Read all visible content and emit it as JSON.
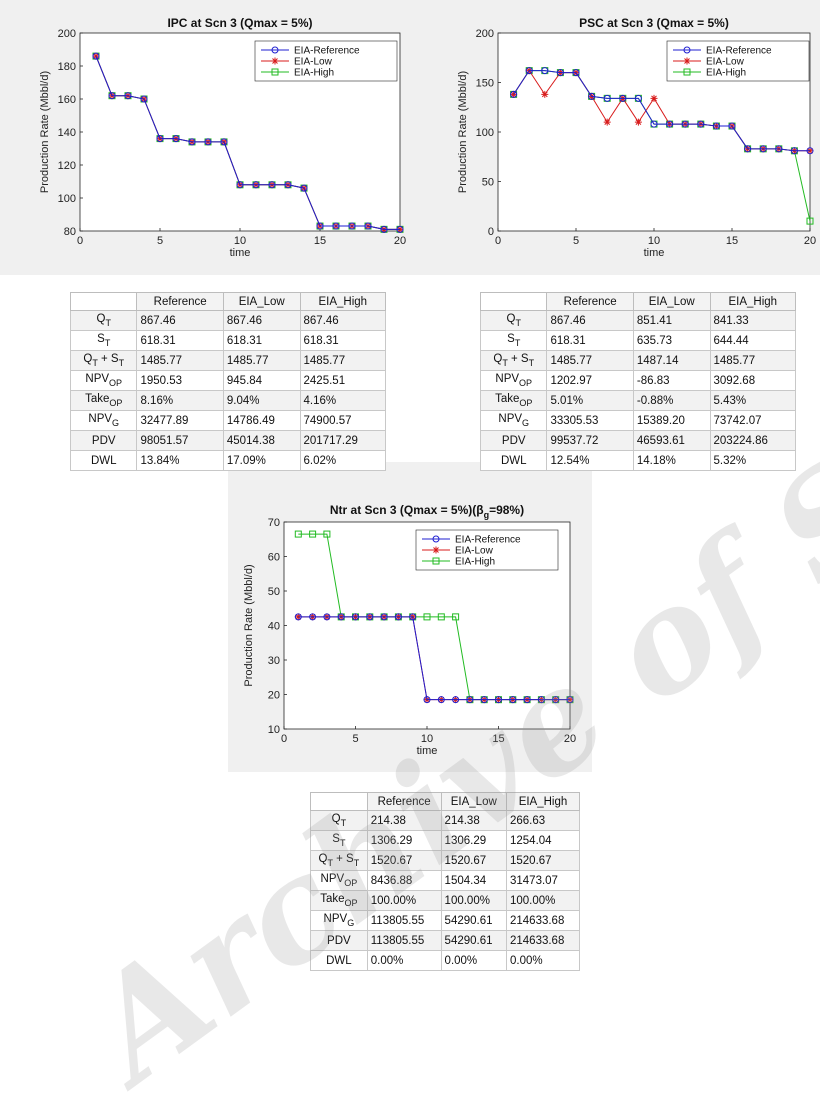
{
  "watermark": "Archive of SID",
  "chart_data": [
    {
      "type": "line",
      "title": "IPC at Scn 3 (Qmax  = 5%)",
      "xlabel": "time",
      "ylabel": "Production Rate (Mbbl/d)",
      "xlim": [
        0,
        20
      ],
      "ylim": [
        80,
        200
      ],
      "xticks": [
        0,
        5,
        10,
        15,
        20
      ],
      "yticks": [
        80,
        100,
        120,
        140,
        160,
        180,
        200
      ],
      "legend_position": "top-right",
      "x": [
        1,
        2,
        3,
        4,
        5,
        6,
        7,
        8,
        9,
        10,
        11,
        12,
        13,
        14,
        15,
        16,
        17,
        18,
        19,
        20
      ],
      "series": [
        {
          "name": "EIA-Reference",
          "color": "#1f1fd0",
          "marker": "circle",
          "values": [
            186,
            162,
            162,
            160,
            136,
            136,
            134,
            134,
            134,
            108,
            108,
            108,
            108,
            106,
            83,
            83,
            83,
            83,
            81,
            81
          ]
        },
        {
          "name": "EIA-Low",
          "color": "#d81b1b",
          "marker": "star",
          "values": [
            186,
            162,
            162,
            160,
            136,
            136,
            134,
            134,
            134,
            108,
            108,
            108,
            108,
            106,
            83,
            83,
            83,
            83,
            81,
            81
          ]
        },
        {
          "name": "EIA-High",
          "color": "#22bb22",
          "marker": "square",
          "values": [
            186,
            162,
            162,
            160,
            136,
            136,
            134,
            134,
            134,
            108,
            108,
            108,
            108,
            106,
            83,
            83,
            83,
            83,
            81,
            81
          ]
        }
      ]
    },
    {
      "type": "line",
      "title": "PSC at Scn 3 (Qmax  = 5%)",
      "xlabel": "time",
      "ylabel": "Production Rate (Mbbl/d)",
      "xlim": [
        0,
        20
      ],
      "ylim": [
        0,
        200
      ],
      "xticks": [
        0,
        5,
        10,
        15,
        20
      ],
      "yticks": [
        0,
        50,
        100,
        150,
        200
      ],
      "legend_position": "top-right",
      "x": [
        1,
        2,
        3,
        4,
        5,
        6,
        7,
        8,
        9,
        10,
        11,
        12,
        13,
        14,
        15,
        16,
        17,
        18,
        19,
        20
      ],
      "series": [
        {
          "name": "EIA-Reference",
          "color": "#1f1fd0",
          "marker": "circle",
          "values": [
            138,
            162,
            162,
            160,
            160,
            136,
            134,
            134,
            134,
            108,
            108,
            108,
            108,
            106,
            106,
            83,
            83,
            83,
            81,
            81
          ]
        },
        {
          "name": "EIA-Low",
          "color": "#d81b1b",
          "marker": "star",
          "values": [
            138,
            162,
            138,
            160,
            160,
            136,
            110,
            134,
            110,
            134,
            108,
            108,
            108,
            106,
            106,
            83,
            83,
            83,
            81,
            81
          ]
        },
        {
          "name": "EIA-High",
          "color": "#22bb22",
          "marker": "square",
          "values": [
            138,
            162,
            162,
            160,
            160,
            136,
            134,
            134,
            134,
            108,
            108,
            108,
            108,
            106,
            106,
            83,
            83,
            83,
            81,
            10
          ]
        }
      ]
    },
    {
      "type": "line",
      "title": "Ntr at Scn 3 (Qmax  = 5%)(β",
      "title_sub": "g",
      "title_tail": "=98%)",
      "xlabel": "time",
      "ylabel": "Production Rate (Mbbl/d)",
      "xlim": [
        0,
        20
      ],
      "ylim": [
        10,
        70
      ],
      "xticks": [
        0,
        5,
        10,
        15,
        20
      ],
      "yticks": [
        10,
        20,
        30,
        40,
        50,
        60,
        70
      ],
      "legend_position": "top-right",
      "x": [
        1,
        2,
        3,
        4,
        5,
        6,
        7,
        8,
        9,
        10,
        11,
        12,
        13,
        14,
        15,
        16,
        17,
        18,
        19,
        20
      ],
      "series": [
        {
          "name": "EIA-Reference",
          "color": "#1f1fd0",
          "marker": "circle",
          "values": [
            42.5,
            42.5,
            42.5,
            42.5,
            42.5,
            42.5,
            42.5,
            42.5,
            42.5,
            18.5,
            18.5,
            18.5,
            18.5,
            18.5,
            18.5,
            18.5,
            18.5,
            18.5,
            18.5,
            18.5
          ]
        },
        {
          "name": "EIA-Low",
          "color": "#d81b1b",
          "marker": "star",
          "values": [
            42.5,
            42.5,
            42.5,
            42.5,
            42.5,
            42.5,
            42.5,
            42.5,
            42.5,
            18.5,
            18.5,
            18.5,
            18.5,
            18.5,
            18.5,
            18.5,
            18.5,
            18.5,
            18.5,
            18.5
          ]
        },
        {
          "name": "EIA-High",
          "color": "#22bb22",
          "marker": "square",
          "values": [
            66.5,
            66.5,
            66.5,
            42.5,
            42.5,
            42.5,
            42.5,
            42.5,
            42.5,
            42.5,
            42.5,
            42.5,
            18.5,
            18.5,
            18.5,
            18.5,
            18.5,
            18.5,
            18.5,
            18.5
          ]
        }
      ]
    }
  ],
  "tables": [
    {
      "columns": [
        "",
        "Reference",
        "EIA_Low",
        "EIA_High"
      ],
      "rows": [
        {
          "label": "Q",
          "sub": "T",
          "sup2": "",
          "values": [
            "867.46",
            "867.46",
            "867.46"
          ]
        },
        {
          "label": "S",
          "sub": "T",
          "sup2": "",
          "values": [
            "618.31",
            "618.31",
            "618.31"
          ]
        },
        {
          "label": "Q",
          "sub": "T",
          "sup2": " + S",
          "sub2": "T",
          "values": [
            "1485.77",
            "1485.77",
            "1485.77"
          ]
        },
        {
          "label": "NPV",
          "sub": "OP",
          "sup2": "",
          "values": [
            "1950.53",
            "945.84",
            "2425.51"
          ]
        },
        {
          "label": "Take",
          "sub": "OP",
          "sup2": "",
          "values": [
            "8.16%",
            "9.04%",
            "4.16%"
          ]
        },
        {
          "label": "NPV",
          "sub": "G",
          "sup2": "",
          "values": [
            "32477.89",
            "14786.49",
            "74900.57"
          ]
        },
        {
          "label": "PDV",
          "sub": "",
          "sup2": "",
          "values": [
            "98051.57",
            "45014.38",
            "201717.29"
          ]
        },
        {
          "label": "DWL",
          "sub": "",
          "sup2": "",
          "values": [
            "13.84%",
            "17.09%",
            "6.02%"
          ]
        }
      ]
    },
    {
      "columns": [
        "",
        "Reference",
        "EIA_Low",
        "EIA_High"
      ],
      "rows": [
        {
          "label": "Q",
          "sub": "T",
          "sup2": "",
          "values": [
            "867.46",
            "851.41",
            "841.33"
          ]
        },
        {
          "label": "S",
          "sub": "T",
          "sup2": "",
          "values": [
            "618.31",
            "635.73",
            "644.44"
          ]
        },
        {
          "label": "Q",
          "sub": "T",
          "sup2": " + S",
          "sub2": "T",
          "values": [
            "1485.77",
            "1487.14",
            "1485.77"
          ]
        },
        {
          "label": "NPV",
          "sub": "OP",
          "sup2": "",
          "values": [
            "1202.97",
            "-86.83",
            "3092.68"
          ]
        },
        {
          "label": "Take",
          "sub": "OP",
          "sup2": "",
          "values": [
            "5.01%",
            "-0.88%",
            "5.43%"
          ]
        },
        {
          "label": "NPV",
          "sub": "G",
          "sup2": "",
          "values": [
            "33305.53",
            "15389.20",
            "73742.07"
          ]
        },
        {
          "label": "PDV",
          "sub": "",
          "sup2": "",
          "values": [
            "99537.72",
            "46593.61",
            "203224.86"
          ]
        },
        {
          "label": "DWL",
          "sub": "",
          "sup2": "",
          "values": [
            "12.54%",
            "14.18%",
            "5.32%"
          ]
        }
      ]
    },
    {
      "columns": [
        "",
        "Reference",
        "EIA_Low",
        "EIA_High"
      ],
      "rows": [
        {
          "label": "Q",
          "sub": "T",
          "sup2": "",
          "values": [
            "214.38",
            "214.38",
            "266.63"
          ]
        },
        {
          "label": "S",
          "sub": "T",
          "sup2": "",
          "values": [
            "1306.29",
            "1306.29",
            "1254.04"
          ]
        },
        {
          "label": "Q",
          "sub": "T",
          "sup2": " + S",
          "sub2": "T",
          "values": [
            "1520.67",
            "1520.67",
            "1520.67"
          ]
        },
        {
          "label": "NPV",
          "sub": "OP",
          "sup2": "",
          "values": [
            "8436.88",
            "1504.34",
            "31473.07"
          ]
        },
        {
          "label": "Take",
          "sub": "OP",
          "sup2": "",
          "values": [
            "100.00%",
            "100.00%",
            "100.00%"
          ]
        },
        {
          "label": "NPV",
          "sub": "G",
          "sup2": "",
          "values": [
            "113805.55",
            "54290.61",
            "214633.68"
          ]
        },
        {
          "label": "PDV",
          "sub": "",
          "sup2": "",
          "values": [
            "113805.55",
            "54290.61",
            "214633.68"
          ]
        },
        {
          "label": "DWL",
          "sub": "",
          "sup2": "",
          "values": [
            "0.00%",
            "0.00%",
            "0.00%"
          ]
        }
      ]
    }
  ]
}
